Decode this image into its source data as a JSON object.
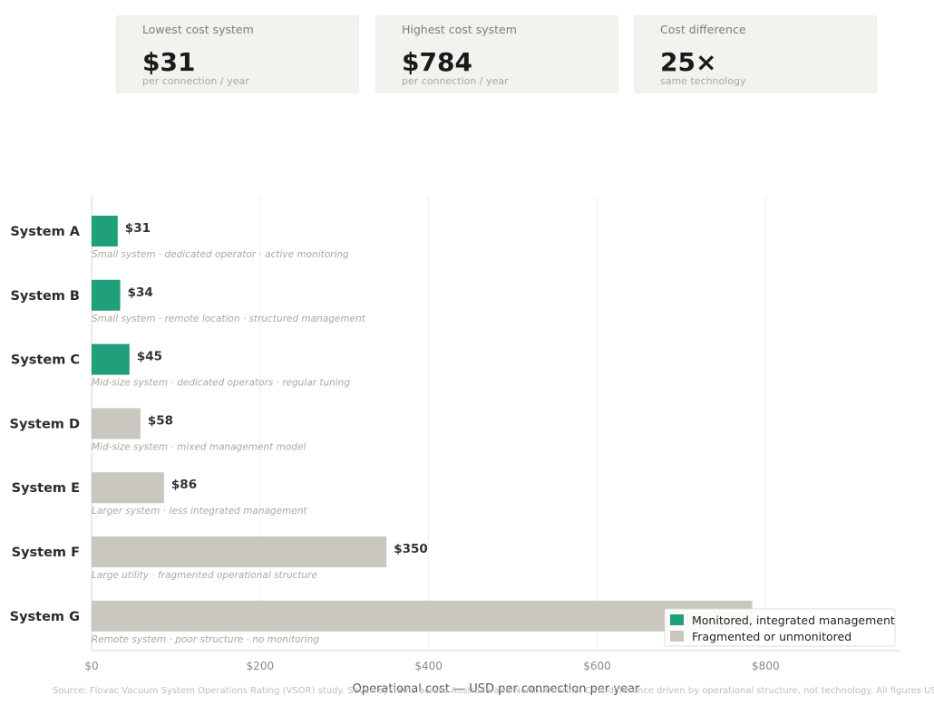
{
  "cards": [
    {
      "label": "Lowest cost system",
      "value": "$31",
      "sub": "per connection / year"
    },
    {
      "label": "Highest cost system",
      "value": "$784",
      "sub": "per connection / year"
    },
    {
      "label": "Cost difference",
      "value": "25×",
      "sub": "same technology"
    }
  ],
  "colors": {
    "monitored": "#1fa07a",
    "fragmented": "#c9c7bf",
    "grid": "#eeeeea",
    "axis": "#d4d4d0"
  },
  "chart_data": {
    "type": "bar",
    "orientation": "horizontal",
    "categories": [
      "System A",
      "System B",
      "System C",
      "System D",
      "System E",
      "System F",
      "System G"
    ],
    "values": [
      31,
      34,
      45,
      58,
      86,
      350,
      784
    ],
    "value_labels": [
      "$31",
      "$34",
      "$45",
      "$58",
      "$86",
      "$350",
      ""
    ],
    "descriptions": [
      "Small system · dedicated operator · active monitoring",
      "Small system · remote location · structured management",
      "Mid-size system · dedicated operators · regular tuning",
      "Mid-size system · mixed management model",
      "Larger system · less integrated management",
      "Large utility · fragmented operational structure",
      "Remote system · poor structure · no monitoring"
    ],
    "groups": [
      "monitored",
      "monitored",
      "monitored",
      "fragmented",
      "fragmented",
      "fragmented",
      "fragmented"
    ],
    "xlabel": "Operational cost — USD per connection per year",
    "xlim": [
      0,
      960
    ],
    "xticks": [
      0,
      200,
      400,
      600,
      800
    ],
    "xtick_labels": [
      "$0",
      "$200",
      "$400",
      "$600",
      "$800"
    ],
    "grid": true,
    "legend": {
      "placement": "bottom-right",
      "entries": [
        {
          "key": "monitored",
          "label": "Monitored, integrated management"
        },
        {
          "key": "fragmented",
          "label": "Fragmented or unmonitored"
        }
      ]
    }
  },
  "source": "Source: Flovac Vacuum System Operations Rating (VSOR) study.  Seven systems across Australia and North America.  Cost difference driven by operational structure, not technology.  All figures USD."
}
